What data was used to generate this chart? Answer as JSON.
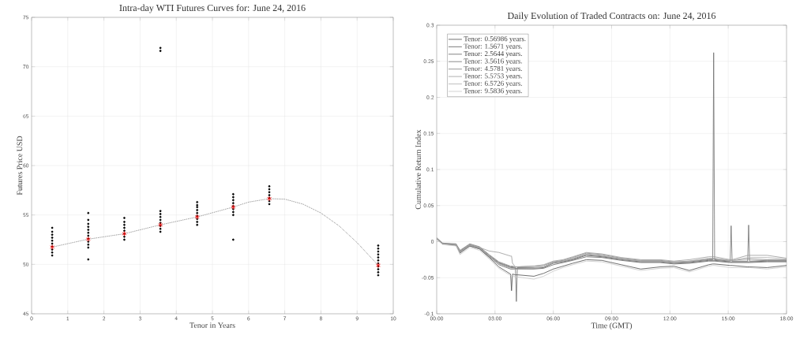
{
  "chart_data": [
    {
      "type": "scatter",
      "title": "Intra-day WTI Futures Curves for: June 24, 2016",
      "xlabel": "Tenor in Years",
      "ylabel": "Futures Price USD",
      "xlim": [
        0,
        10
      ],
      "xticks": [
        0,
        1,
        2,
        3,
        4,
        5,
        6,
        7,
        8,
        9,
        10
      ],
      "ylim": [
        45,
        75
      ],
      "yticks": [
        45,
        50,
        55,
        60,
        65,
        70,
        75
      ],
      "grid": true,
      "series": [
        {
          "type": "scatter",
          "color": "#000000",
          "marker": "circle",
          "x": [
            0.56986,
            0.56986,
            0.56986,
            0.56986,
            0.56986,
            0.56986,
            0.56986,
            0.56986,
            0.56986,
            0.56986,
            1.5671,
            1.5671,
            1.5671,
            1.5671,
            1.5671,
            1.5671,
            1.5671,
            1.5671,
            1.5671,
            1.5671,
            1.5671,
            1.5671,
            2.5644,
            2.5644,
            2.5644,
            2.5644,
            2.5644,
            2.5644,
            2.5644,
            2.5644,
            3.5616,
            3.5616,
            3.5616,
            3.5616,
            3.5616,
            3.5616,
            3.5616,
            3.5616,
            3.5616,
            3.5616,
            4.5781,
            4.5781,
            4.5781,
            4.5781,
            4.5781,
            4.5781,
            4.5781,
            4.5781,
            4.5781,
            5.5753,
            5.5753,
            5.5753,
            5.5753,
            5.5753,
            5.5753,
            5.5753,
            5.5753,
            5.5753,
            6.5726,
            6.5726,
            6.5726,
            6.5726,
            6.5726,
            6.5726,
            6.5726,
            9.5836,
            9.5836,
            9.5836,
            9.5836,
            9.5836,
            9.5836,
            9.5836,
            9.5836,
            9.5836,
            9.5836,
            9.5836
          ],
          "values": [
            50.9,
            51.2,
            51.5,
            51.8,
            52.1,
            52.4,
            52.7,
            53.0,
            53.3,
            53.7,
            50.5,
            51.7,
            52.0,
            52.3,
            52.6,
            52.9,
            53.2,
            53.5,
            53.8,
            54.1,
            54.5,
            55.2,
            52.5,
            52.8,
            53.1,
            53.4,
            53.7,
            54.0,
            54.3,
            54.7,
            53.3,
            53.6,
            53.9,
            54.2,
            54.5,
            54.8,
            55.1,
            55.4,
            71.6,
            71.9,
            54.0,
            54.3,
            54.6,
            54.9,
            55.2,
            55.5,
            55.8,
            56.0,
            56.3,
            52.5,
            55.0,
            55.3,
            55.6,
            55.9,
            56.2,
            56.5,
            56.8,
            57.1,
            56.1,
            56.4,
            56.7,
            57.0,
            57.3,
            57.6,
            57.9,
            48.9,
            49.2,
            49.5,
            49.8,
            50.1,
            50.4,
            50.7,
            51.0,
            51.3,
            51.6,
            51.9
          ]
        },
        {
          "type": "scatter",
          "color": "#ff0000",
          "marker": "cross",
          "x": [
            0.56986,
            1.5671,
            2.5644,
            3.5616,
            4.5781,
            5.5753,
            6.5726,
            9.5836
          ],
          "values": [
            51.75,
            52.55,
            53.1,
            54.0,
            54.8,
            55.8,
            56.65,
            49.9
          ]
        },
        {
          "type": "line",
          "color": "#555555",
          "line_style": "dotted",
          "x": [
            0.56986,
            1.5671,
            2.5644,
            3.5616,
            4.5781,
            5.5753,
            6.0,
            6.5726,
            7.0,
            7.5,
            8.0,
            8.5,
            9.0,
            9.5836
          ],
          "values": [
            51.75,
            52.55,
            53.1,
            54.0,
            54.8,
            55.8,
            56.3,
            56.65,
            56.6,
            56.1,
            55.2,
            53.9,
            52.2,
            49.9
          ]
        }
      ]
    },
    {
      "type": "line",
      "title": "Daily Evolution of Traded Contracts on: June 24, 2016",
      "xlabel": "Time (GMT)",
      "ylabel": "Cumulative Return Index",
      "xlim": [
        0,
        18
      ],
      "xticks": [
        {
          "value": 0,
          "label": "00:00"
        },
        {
          "value": 3,
          "label": "03:00"
        },
        {
          "value": 6,
          "label": "06:00"
        },
        {
          "value": 9,
          "label": "09:00"
        },
        {
          "value": 12,
          "label": "12:00"
        },
        {
          "value": 15,
          "label": "15:00"
        },
        {
          "value": 18,
          "label": "18:00"
        }
      ],
      "ylim": [
        -0.1,
        0.3
      ],
      "yticks": [
        -0.1,
        -0.05,
        0,
        0.05,
        0.1,
        0.15,
        0.2,
        0.25,
        0.3
      ],
      "grid": true,
      "legend": "top left",
      "x": [
        0,
        0.3,
        1.0,
        1.2,
        1.7,
        2.2,
        2.7,
        3.2,
        3.8,
        3.85,
        3.9,
        4.05,
        4.1,
        4.15,
        5.0,
        5.5,
        6.0,
        6.5,
        7.0,
        7.7,
        8.5,
        9.5,
        10.5,
        11.5,
        12.2,
        13.0,
        14.0,
        14.2,
        14.25,
        14.3,
        15.1,
        15.15,
        15.2,
        16.0,
        16.05,
        16.1,
        17.0,
        18.0
      ],
      "series": [
        {
          "name": "Tenor: 0.56986 years.",
          "color": "#4d4d4d",
          "values": [
            0.005,
            -0.003,
            -0.005,
            -0.016,
            -0.006,
            -0.01,
            -0.022,
            -0.035,
            -0.045,
            -0.068,
            -0.045,
            -0.046,
            -0.046,
            -0.046,
            -0.048,
            -0.044,
            -0.038,
            -0.034,
            -0.03,
            -0.025,
            -0.026,
            -0.032,
            -0.038,
            -0.035,
            -0.034,
            -0.04,
            -0.032,
            -0.031,
            -0.031,
            -0.031,
            -0.033,
            -0.033,
            -0.033,
            -0.035,
            -0.035,
            -0.035,
            -0.036,
            -0.033
          ]
        },
        {
          "name": "Tenor: 1.5671 years.",
          "color": "#5a5a5a",
          "values": [
            0.004,
            -0.003,
            -0.004,
            -0.014,
            -0.005,
            -0.009,
            -0.02,
            -0.03,
            -0.036,
            -0.036,
            -0.036,
            -0.037,
            -0.037,
            -0.037,
            -0.037,
            -0.036,
            -0.03,
            -0.028,
            -0.025,
            -0.019,
            -0.021,
            -0.025,
            -0.028,
            -0.028,
            -0.03,
            -0.029,
            -0.026,
            -0.026,
            -0.026,
            -0.026,
            -0.028,
            -0.028,
            -0.028,
            -0.028,
            -0.028,
            -0.028,
            -0.027,
            -0.027
          ]
        },
        {
          "name": "Tenor: 2.5644 years.",
          "color": "#636363",
          "values": [
            0.004,
            -0.003,
            -0.005,
            -0.015,
            -0.006,
            -0.01,
            -0.021,
            -0.032,
            -0.038,
            -0.038,
            -0.038,
            -0.038,
            -0.038,
            -0.038,
            -0.038,
            -0.037,
            -0.032,
            -0.029,
            -0.026,
            -0.021,
            -0.022,
            -0.026,
            -0.029,
            -0.029,
            -0.031,
            -0.03,
            -0.027,
            -0.027,
            -0.027,
            -0.027,
            -0.029,
            -0.029,
            -0.029,
            -0.029,
            -0.029,
            -0.029,
            -0.028,
            -0.028
          ]
        },
        {
          "name": "Tenor: 3.5616 years.",
          "color": "#6e6e6e",
          "values": [
            0.005,
            -0.002,
            -0.004,
            -0.013,
            -0.004,
            -0.008,
            -0.019,
            -0.029,
            -0.035,
            -0.035,
            -0.035,
            -0.036,
            -0.083,
            -0.036,
            -0.036,
            -0.035,
            -0.029,
            -0.027,
            -0.024,
            -0.018,
            -0.02,
            -0.024,
            -0.027,
            -0.027,
            -0.029,
            -0.028,
            -0.025,
            -0.025,
            0.262,
            -0.025,
            -0.027,
            0.022,
            -0.027,
            -0.027,
            0.023,
            -0.027,
            -0.026,
            -0.026
          ]
        },
        {
          "name": "Tenor: 4.5781 years.",
          "color": "#808080",
          "values": [
            0.005,
            -0.002,
            -0.003,
            -0.012,
            -0.003,
            -0.007,
            -0.018,
            -0.028,
            -0.034,
            -0.034,
            -0.034,
            -0.035,
            -0.035,
            -0.035,
            -0.034,
            -0.033,
            -0.028,
            -0.026,
            -0.022,
            -0.016,
            -0.018,
            -0.023,
            -0.026,
            -0.026,
            -0.028,
            -0.027,
            -0.024,
            -0.024,
            -0.024,
            -0.024,
            -0.026,
            -0.026,
            -0.026,
            -0.024,
            -0.024,
            -0.024,
            -0.025,
            -0.025
          ]
        },
        {
          "name": "Tenor: 5.5753 years.",
          "color": "#999999",
          "values": [
            0.004,
            -0.003,
            -0.004,
            -0.014,
            -0.004,
            -0.008,
            -0.013,
            -0.015,
            -0.02,
            -0.02,
            -0.03,
            -0.035,
            -0.035,
            -0.035,
            -0.034,
            -0.032,
            -0.027,
            -0.025,
            -0.021,
            -0.015,
            -0.017,
            -0.022,
            -0.025,
            -0.025,
            -0.027,
            -0.025,
            -0.021,
            -0.021,
            -0.021,
            -0.021,
            -0.025,
            -0.025,
            -0.025,
            -0.019,
            -0.019,
            -0.019,
            -0.019,
            -0.023
          ]
        },
        {
          "name": "Tenor: 6.5726 years.",
          "color": "#b0b0b0",
          "values": [
            0.005,
            -0.003,
            -0.004,
            -0.015,
            -0.005,
            -0.009,
            -0.02,
            -0.031,
            -0.037,
            -0.037,
            -0.037,
            -0.038,
            -0.038,
            -0.038,
            -0.037,
            -0.035,
            -0.029,
            -0.027,
            -0.023,
            -0.017,
            -0.019,
            -0.024,
            -0.027,
            -0.027,
            -0.029,
            -0.027,
            -0.023,
            -0.023,
            -0.023,
            -0.023,
            -0.026,
            -0.026,
            -0.026,
            -0.022,
            -0.022,
            -0.022,
            -0.022,
            -0.024
          ]
        },
        {
          "name": "Tenor: 9.5836 years.",
          "color": "#c8c8c8",
          "values": [
            0.003,
            -0.004,
            -0.006,
            -0.018,
            -0.008,
            -0.012,
            -0.024,
            -0.037,
            -0.047,
            -0.047,
            -0.047,
            -0.049,
            -0.049,
            -0.049,
            -0.052,
            -0.048,
            -0.041,
            -0.036,
            -0.032,
            -0.027,
            -0.028,
            -0.034,
            -0.04,
            -0.037,
            -0.036,
            -0.042,
            -0.034,
            -0.033,
            -0.033,
            -0.033,
            -0.036,
            -0.036,
            -0.036,
            -0.036,
            -0.036,
            -0.036,
            -0.038,
            -0.035
          ]
        }
      ]
    }
  ]
}
